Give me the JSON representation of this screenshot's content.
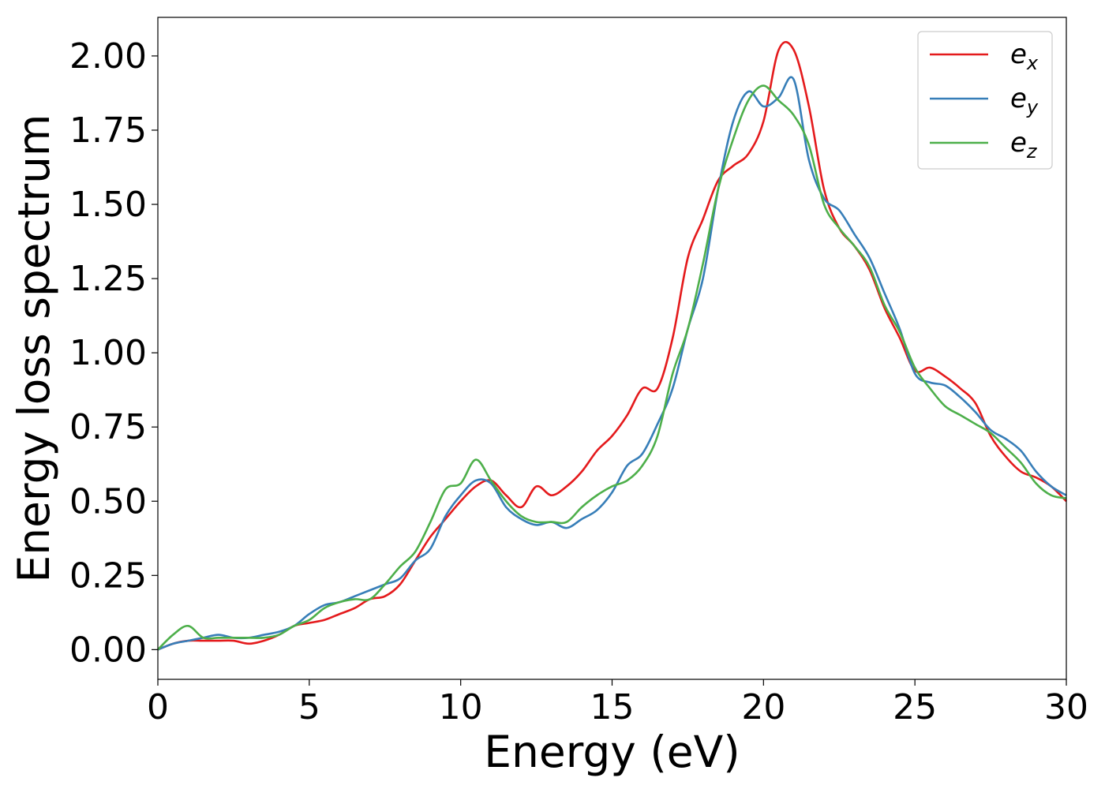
{
  "chart_data": {
    "type": "line",
    "title": "",
    "xlabel": "Energy (eV)",
    "ylabel": "Energy loss spectrum",
    "xlim": [
      0,
      30
    ],
    "ylim": [
      -0.1,
      2.13
    ],
    "xticks": [
      0,
      5,
      10,
      15,
      20,
      25,
      30
    ],
    "xtick_labels": [
      "0",
      "5",
      "10",
      "15",
      "20",
      "25",
      "30"
    ],
    "yticks": [
      0.0,
      0.25,
      0.5,
      0.75,
      1.0,
      1.25,
      1.5,
      1.75,
      2.0
    ],
    "ytick_labels": [
      "0.00",
      "0.25",
      "0.50",
      "0.75",
      "1.00",
      "1.25",
      "1.50",
      "1.75",
      "2.00"
    ],
    "grid": false,
    "legend_position": "top-right",
    "series": [
      {
        "name": "e_x",
        "label_base": "e",
        "label_sub": "x",
        "color": "#e41a1c",
        "x": [
          0,
          0.5,
          1,
          1.5,
          2,
          2.5,
          3,
          3.5,
          4,
          4.5,
          5,
          5.5,
          6,
          6.5,
          7,
          7.5,
          8,
          8.5,
          9,
          9.5,
          10,
          10.5,
          11,
          11.5,
          12,
          12.5,
          13,
          13.5,
          14,
          14.5,
          15,
          15.5,
          16,
          16.5,
          17,
          17.5,
          18,
          18.5,
          19,
          19.5,
          20,
          20.5,
          21,
          21.5,
          22,
          22.5,
          23,
          23.5,
          24,
          24.5,
          25,
          25.5,
          26,
          26.5,
          27,
          27.5,
          28,
          28.5,
          29,
          29.5,
          30
        ],
        "y": [
          0.0,
          0.02,
          0.03,
          0.03,
          0.03,
          0.03,
          0.02,
          0.03,
          0.05,
          0.08,
          0.09,
          0.1,
          0.12,
          0.14,
          0.17,
          0.18,
          0.22,
          0.3,
          0.38,
          0.44,
          0.5,
          0.55,
          0.57,
          0.52,
          0.48,
          0.55,
          0.52,
          0.55,
          0.6,
          0.67,
          0.72,
          0.79,
          0.88,
          0.88,
          1.05,
          1.32,
          1.45,
          1.58,
          1.63,
          1.67,
          1.78,
          2.02,
          2.02,
          1.83,
          1.55,
          1.42,
          1.36,
          1.28,
          1.15,
          1.05,
          0.94,
          0.95,
          0.92,
          0.88,
          0.83,
          0.72,
          0.65,
          0.6,
          0.58,
          0.55,
          0.5
        ]
      },
      {
        "name": "e_y",
        "label_base": "e",
        "label_sub": "y",
        "color": "#377eb8",
        "x": [
          0,
          0.5,
          1,
          1.5,
          2,
          2.5,
          3,
          3.5,
          4,
          4.5,
          5,
          5.5,
          6,
          6.5,
          7,
          7.5,
          8,
          8.5,
          9,
          9.5,
          10,
          10.5,
          11,
          11.5,
          12,
          12.5,
          13,
          13.5,
          14,
          14.5,
          15,
          15.5,
          16,
          16.5,
          17,
          17.5,
          18,
          18.5,
          19,
          19.5,
          20,
          20.5,
          21,
          21.5,
          22,
          22.5,
          23,
          23.5,
          24,
          24.5,
          25,
          25.5,
          26,
          26.5,
          27,
          27.5,
          28,
          28.5,
          29,
          29.5,
          30
        ],
        "y": [
          0.0,
          0.02,
          0.03,
          0.04,
          0.05,
          0.04,
          0.04,
          0.05,
          0.06,
          0.08,
          0.12,
          0.15,
          0.16,
          0.18,
          0.2,
          0.22,
          0.24,
          0.3,
          0.34,
          0.45,
          0.52,
          0.57,
          0.56,
          0.48,
          0.44,
          0.42,
          0.43,
          0.41,
          0.44,
          0.47,
          0.53,
          0.62,
          0.66,
          0.76,
          0.88,
          1.08,
          1.25,
          1.55,
          1.78,
          1.88,
          1.83,
          1.86,
          1.92,
          1.65,
          1.52,
          1.48,
          1.4,
          1.32,
          1.2,
          1.08,
          0.93,
          0.9,
          0.89,
          0.85,
          0.8,
          0.74,
          0.71,
          0.67,
          0.6,
          0.55,
          0.52
        ]
      },
      {
        "name": "e_z",
        "label_base": "e",
        "label_sub": "z",
        "color": "#4daf4a",
        "x": [
          0,
          0.5,
          1,
          1.5,
          2,
          2.5,
          3,
          3.5,
          4,
          4.5,
          5,
          5.5,
          6,
          6.5,
          7,
          7.5,
          8,
          8.5,
          9,
          9.5,
          10,
          10.5,
          11,
          11.5,
          12,
          12.5,
          13,
          13.5,
          14,
          14.5,
          15,
          15.5,
          16,
          16.5,
          17,
          17.5,
          18,
          18.5,
          19,
          19.5,
          20,
          20.5,
          21,
          21.5,
          22,
          22.5,
          23,
          23.5,
          24,
          24.5,
          25,
          25.5,
          26,
          26.5,
          27,
          27.5,
          28,
          28.5,
          29,
          29.5,
          30
        ],
        "y": [
          0.0,
          0.05,
          0.08,
          0.04,
          0.04,
          0.04,
          0.04,
          0.04,
          0.05,
          0.08,
          0.1,
          0.14,
          0.16,
          0.17,
          0.17,
          0.22,
          0.28,
          0.33,
          0.43,
          0.54,
          0.56,
          0.64,
          0.57,
          0.5,
          0.45,
          0.43,
          0.43,
          0.43,
          0.48,
          0.52,
          0.55,
          0.57,
          0.62,
          0.72,
          0.93,
          1.08,
          1.3,
          1.55,
          1.72,
          1.85,
          1.9,
          1.85,
          1.8,
          1.7,
          1.5,
          1.42,
          1.36,
          1.29,
          1.16,
          1.07,
          0.95,
          0.88,
          0.82,
          0.79,
          0.76,
          0.73,
          0.68,
          0.63,
          0.56,
          0.52,
          0.51
        ]
      }
    ]
  }
}
